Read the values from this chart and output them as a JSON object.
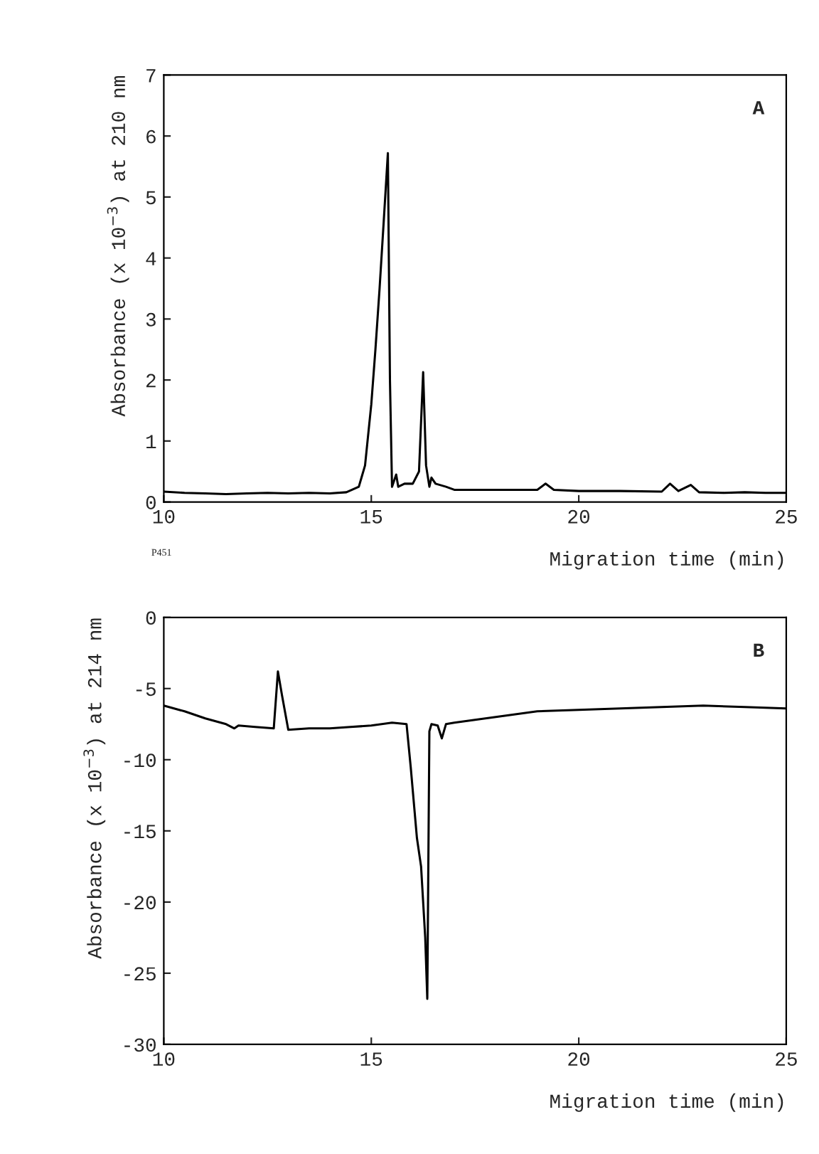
{
  "chart_data": [
    {
      "type": "line",
      "xlabel": "Migration time (min)",
      "ylabel": "Absorbance (x 10$^{−3}$) at 210 nm",
      "annotations": [
        "A",
        "P451"
      ],
      "xlim": [
        10,
        25
      ],
      "ylim": [
        0,
        7
      ],
      "xticks": [
        10,
        15,
        20,
        25
      ],
      "yticks": [
        0,
        1,
        2,
        3,
        4,
        5,
        6,
        7
      ],
      "grid": false,
      "series": [
        {
          "color": "#000000",
          "x": [
            10,
            10.5,
            11,
            11.5,
            12,
            12.5,
            13,
            13.5,
            14,
            14.4,
            14.7,
            14.85,
            15.0,
            15.1,
            15.2,
            15.3,
            15.4,
            15.45,
            15.5,
            15.6,
            15.65,
            15.8,
            16.0,
            16.15,
            16.25,
            16.32,
            16.4,
            16.45,
            16.55,
            16.8,
            17.0,
            18.0,
            19.0,
            19.2,
            19.4,
            20,
            21,
            22.0,
            22.2,
            22.4,
            22.7,
            22.9,
            23.5,
            24,
            24.5,
            25
          ],
          "values": [
            0.17,
            0.15,
            0.14,
            0.13,
            0.14,
            0.15,
            0.14,
            0.15,
            0.14,
            0.16,
            0.25,
            0.6,
            1.6,
            2.5,
            3.5,
            4.6,
            5.72,
            2.0,
            0.25,
            0.45,
            0.25,
            0.3,
            0.3,
            0.5,
            2.13,
            0.6,
            0.25,
            0.4,
            0.3,
            0.25,
            0.2,
            0.2,
            0.2,
            0.3,
            0.2,
            0.18,
            0.18,
            0.17,
            0.3,
            0.18,
            0.28,
            0.16,
            0.15,
            0.16,
            0.15,
            0.15
          ]
        }
      ]
    },
    {
      "type": "line",
      "xlabel": "Migration time (min)",
      "ylabel": "Absorbance (x 10$^{−3}$) at 214 nm",
      "annotations": [
        "B"
      ],
      "xlim": [
        10,
        25
      ],
      "ylim": [
        -30,
        0
      ],
      "xticks": [
        10,
        15,
        20,
        25
      ],
      "yticks": [
        -30,
        -25,
        -20,
        -15,
        -10,
        -5,
        0
      ],
      "grid": false,
      "series": [
        {
          "color": "#000000",
          "x": [
            10,
            10.5,
            11,
            11.5,
            11.7,
            11.8,
            12.2,
            12.65,
            12.75,
            12.85,
            13.0,
            13.5,
            14,
            14.5,
            15,
            15.5,
            15.85,
            15.95,
            16.1,
            16.2,
            16.3,
            16.35,
            16.4,
            16.45,
            16.6,
            16.7,
            16.8,
            17,
            17.5,
            18,
            18.5,
            19,
            20,
            21,
            22,
            23,
            24,
            25
          ],
          "values": [
            -6.2,
            -6.6,
            -7.1,
            -7.5,
            -7.8,
            -7.6,
            -7.7,
            -7.8,
            -3.8,
            -5.5,
            -7.9,
            -7.8,
            -7.8,
            -7.7,
            -7.6,
            -7.4,
            -7.5,
            -10.5,
            -15.5,
            -17.5,
            -22.5,
            -26.8,
            -8.0,
            -7.5,
            -7.6,
            -8.5,
            -7.5,
            -7.4,
            -7.2,
            -7.0,
            -6.8,
            -6.6,
            -6.5,
            -6.4,
            -6.3,
            -6.2,
            -6.3,
            -6.4
          ]
        }
      ]
    }
  ]
}
